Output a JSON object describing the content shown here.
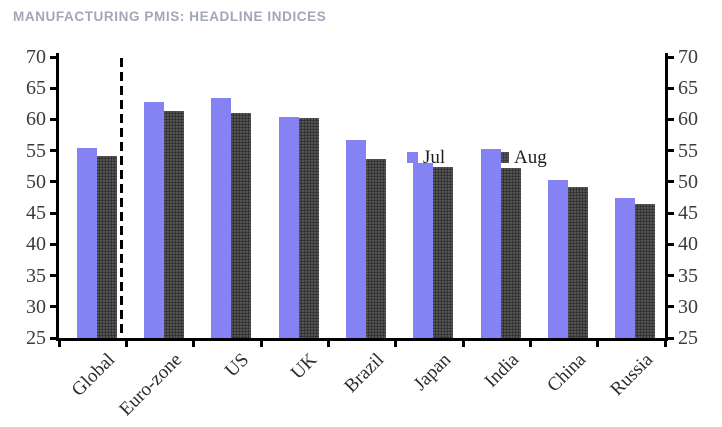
{
  "title": "MANUFACTURING PMIS: HEADLINE INDICES",
  "colors": {
    "title": "#a2a6ba",
    "jul_bar": "#8583f3",
    "aug_bar": "#3e3e3e",
    "axis": "#000000",
    "tick_label": "#3c3c3c"
  },
  "legend": {
    "items": [
      {
        "label": "Jul"
      },
      {
        "label": "Aug"
      }
    ]
  },
  "chart_data": {
    "type": "bar",
    "title": "MANUFACTURING PMIS: HEADLINE INDICES",
    "categories": [
      "Global",
      "Euro-zone",
      "US",
      "UK",
      "Brazil",
      "Japan",
      "India",
      "China",
      "Russia"
    ],
    "series": [
      {
        "name": "Jul",
        "color": "#8583f3",
        "values": [
          55.4,
          62.8,
          63.4,
          60.4,
          56.7,
          53.0,
          55.3,
          50.3,
          47.5
        ]
      },
      {
        "name": "Aug",
        "color": "#3e3e3e",
        "values": [
          54.1,
          61.4,
          61.1,
          60.3,
          53.6,
          52.4,
          52.3,
          49.2,
          46.5
        ]
      }
    ],
    "ylabel": "",
    "xlabel": "",
    "ylim": [
      25,
      70
    ],
    "ytick_step": 5,
    "y_axis_sides": [
      "left",
      "right"
    ],
    "grid": false,
    "legend_position": "inside-top",
    "separator_after_category": "Global",
    "bars_baseline": 25
  }
}
